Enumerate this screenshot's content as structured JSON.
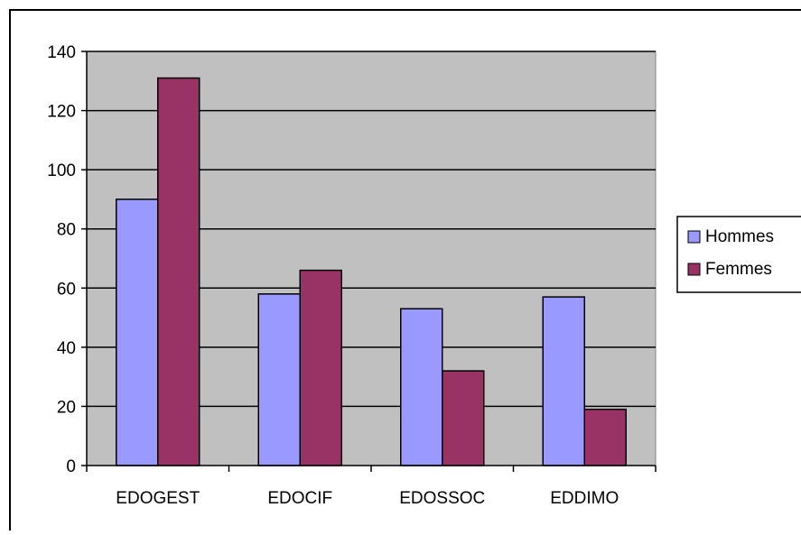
{
  "chart_data": {
    "type": "bar",
    "categories": [
      "EDOGEST",
      "EDOCIF",
      "EDOSSOC",
      "EDDIMO"
    ],
    "series": [
      {
        "name": "Hommes",
        "values": [
          90,
          58,
          53,
          57
        ],
        "color": "#9999FF"
      },
      {
        "name": "Femmes",
        "values": [
          131,
          66,
          32,
          19
        ],
        "color": "#993366"
      }
    ],
    "ylim": [
      0,
      140
    ],
    "y_ticks": [
      0,
      20,
      40,
      60,
      80,
      100,
      120,
      140
    ],
    "y_tick_labels": [
      "0",
      "20",
      "40",
      "60",
      "80",
      "100",
      "120",
      "140"
    ],
    "title": "",
    "xlabel": "",
    "ylabel": "",
    "grid": true,
    "plot_background": "#C0C0C0",
    "legend_position": "right"
  }
}
